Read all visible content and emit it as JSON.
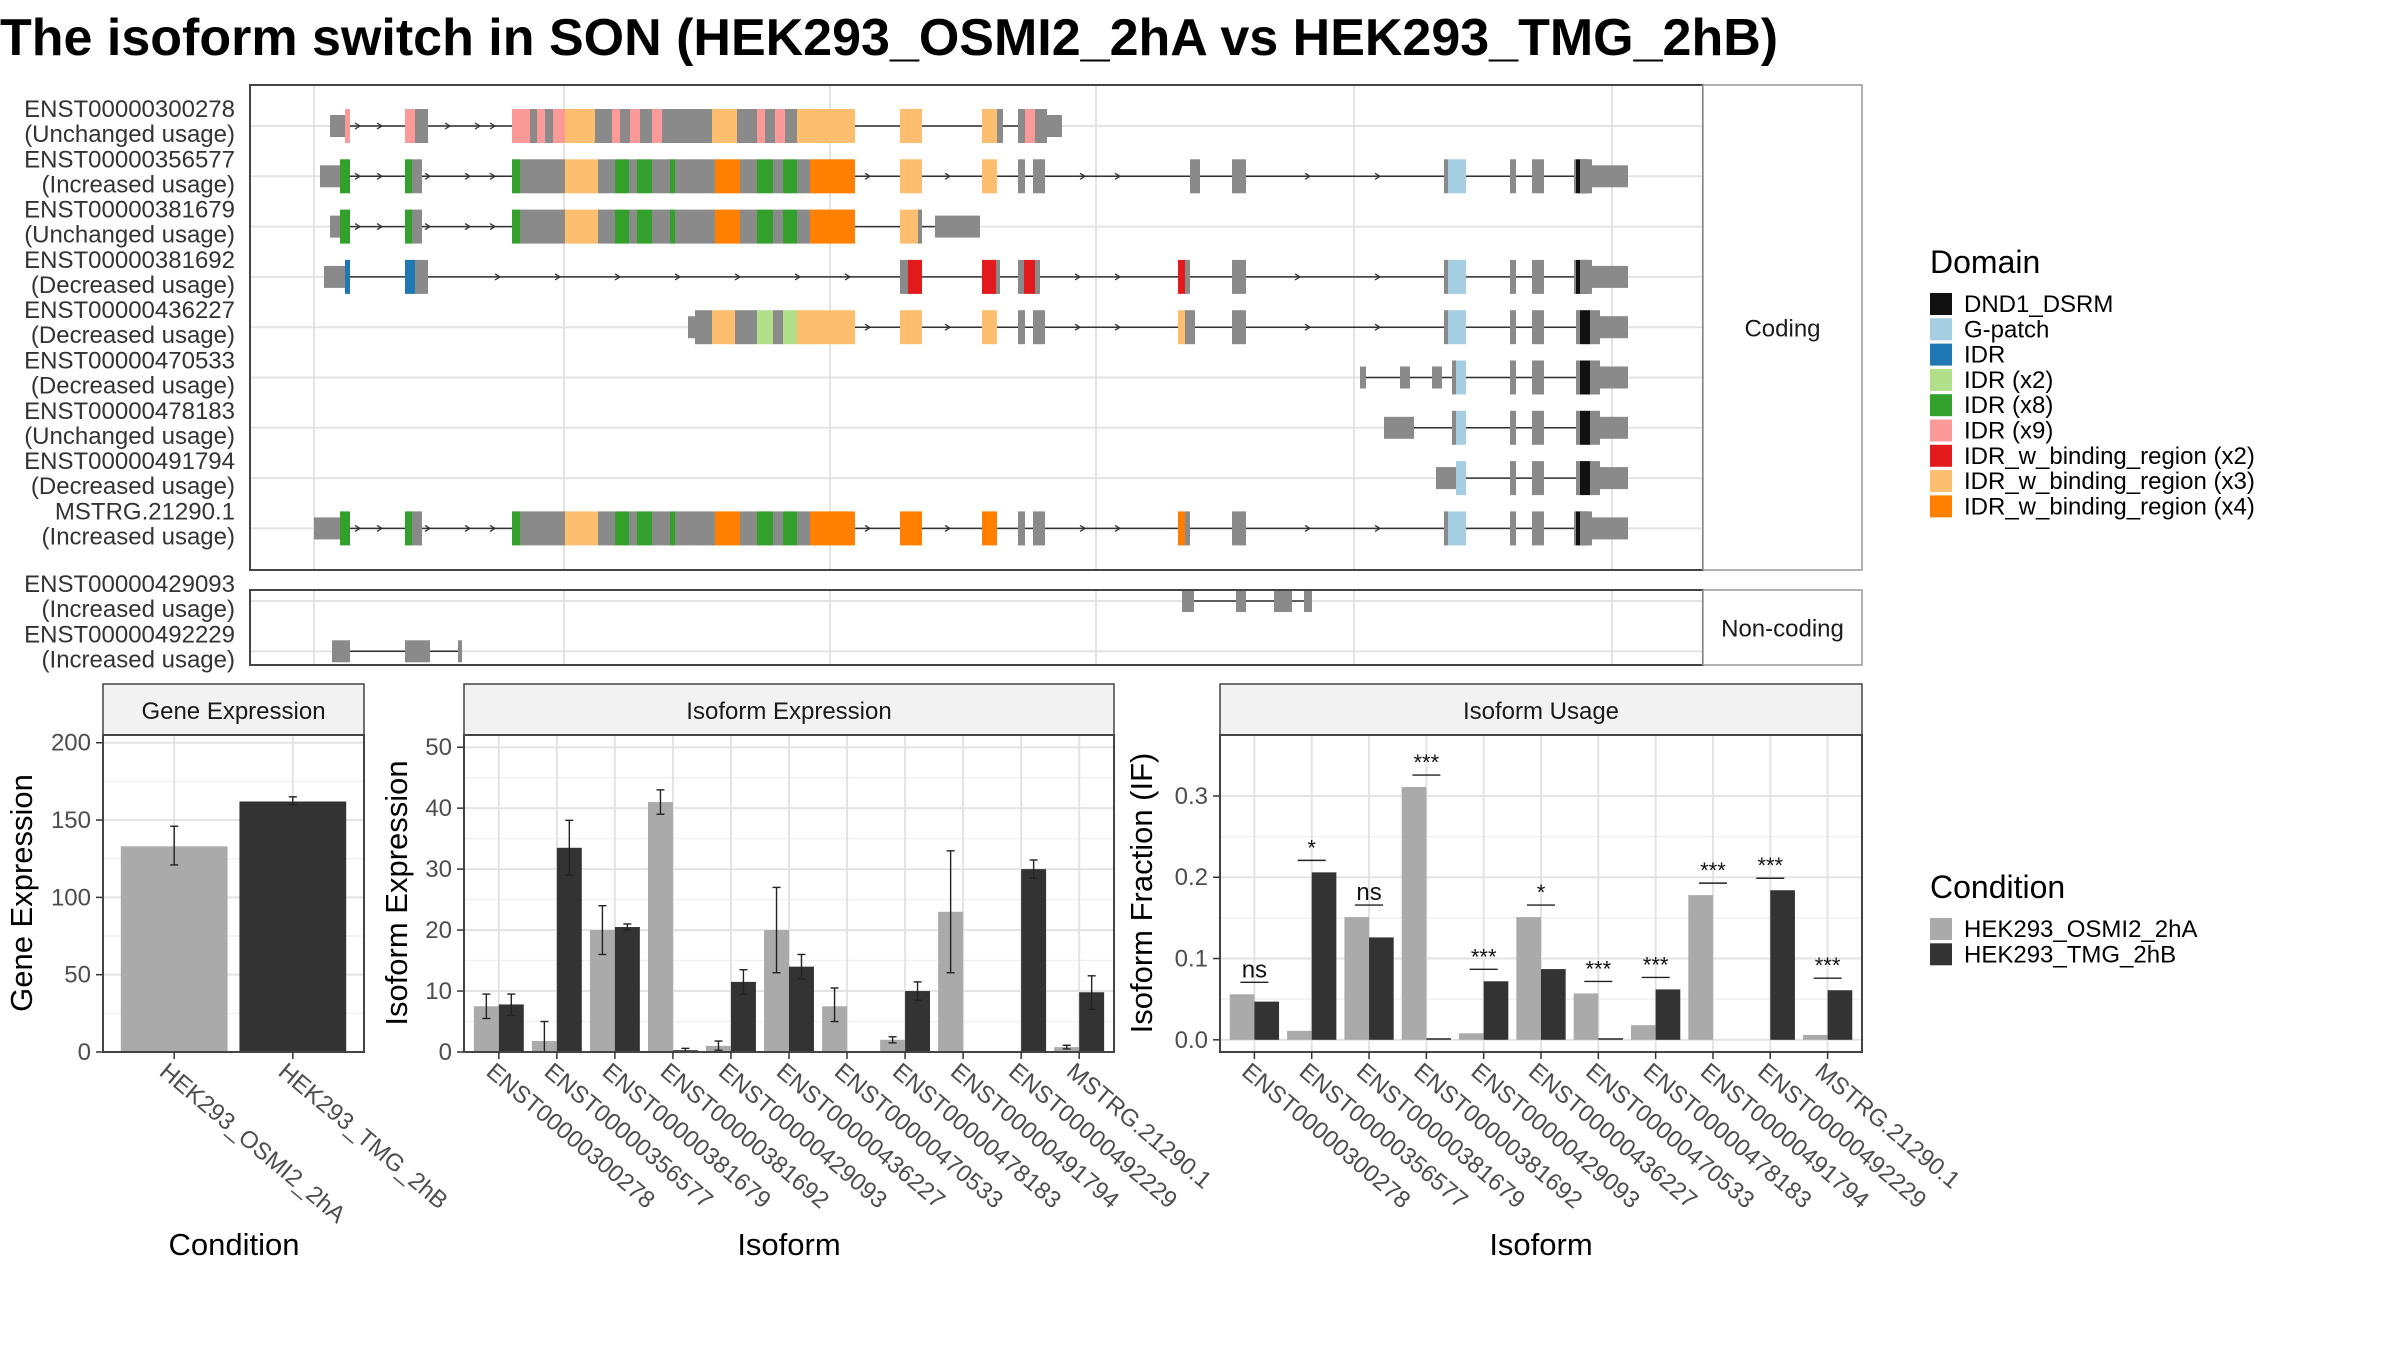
{
  "title": "The isoform switch in SON (HEK293_OSMI2_2hA vs HEK293_TMG_2hB)",
  "chart_data": [
    {
      "type": "gene_structure",
      "panels": [
        {
          "strip": "Coding",
          "isoforms": [
            {
              "id": "ENST00000300278",
              "usage": "(Unchanged usage)"
            },
            {
              "id": "ENST00000356577",
              "usage": "(Increased usage)"
            },
            {
              "id": "ENST00000381679",
              "usage": "(Unchanged usage)"
            },
            {
              "id": "ENST00000381692",
              "usage": "(Decreased usage)"
            },
            {
              "id": "ENST00000436227",
              "usage": "(Decreased usage)"
            },
            {
              "id": "ENST00000470533",
              "usage": "(Decreased usage)"
            },
            {
              "id": "ENST00000478183",
              "usage": "(Unchanged usage)"
            },
            {
              "id": "ENST00000491794",
              "usage": "(Decreased usage)"
            },
            {
              "id": "MSTRG.21290.1",
              "usage": "(Increased usage)"
            }
          ]
        },
        {
          "strip": "Non-coding",
          "isoforms": [
            {
              "id": "ENST00000429093",
              "usage": "(Increased usage)"
            },
            {
              "id": "ENST00000492229",
              "usage": "(Increased usage)"
            }
          ]
        }
      ],
      "legend": {
        "title": "Domain",
        "items": [
          {
            "label": "DND1_DSRM",
            "color": "#111111"
          },
          {
            "label": "G-patch",
            "color": "#a6cee3"
          },
          {
            "label": "IDR",
            "color": "#1f78b4"
          },
          {
            "label": "IDR (x2)",
            "color": "#b2df8a"
          },
          {
            "label": "IDR (x8)",
            "color": "#33a02c"
          },
          {
            "label": "IDR (x9)",
            "color": "#fb9a99"
          },
          {
            "label": "IDR_w_binding_region (x2)",
            "color": "#e31a1c"
          },
          {
            "label": "IDR_w_binding_region (x3)",
            "color": "#fdbf6f"
          },
          {
            "label": "IDR_w_binding_region (x4)",
            "color": "#ff7f00"
          }
        ]
      }
    },
    {
      "type": "bar",
      "strip": "Gene Expression",
      "xlabel": "Condition",
      "ylabel": "Gene Expression",
      "categories": [
        "HEK293_OSMI2_2hA",
        "HEK293_TMG_2hB"
      ],
      "values": [
        133,
        162
      ],
      "errors": [
        [
          121,
          146
        ],
        [
          160,
          165
        ]
      ],
      "ylim": [
        0,
        205
      ],
      "yticks": [
        "0",
        "50",
        "100",
        "150",
        "200"
      ]
    },
    {
      "type": "bar",
      "strip": "Isoform Expression",
      "xlabel": "Isoform",
      "ylabel": "Isoform Expression",
      "categories": [
        "ENST00000300278",
        "ENST00000356577",
        "ENST00000381679",
        "ENST00000381692",
        "ENST00000429093",
        "ENST00000436227",
        "ENST00000470533",
        "ENST00000478183",
        "ENST00000491794",
        "ENST00000492229",
        "MSTRG.21290.1"
      ],
      "series": [
        {
          "name": "HEK293_OSMI2_2hA",
          "values": [
            7.5,
            1.8,
            20,
            41,
            1,
            20,
            7.5,
            2,
            23,
            0,
            0.8
          ],
          "errors": [
            [
              5.5,
              9.5
            ],
            [
              0,
              5
            ],
            [
              16,
              24
            ],
            [
              39,
              43
            ],
            [
              0.3,
              1.8
            ],
            [
              13,
              27
            ],
            [
              5,
              10.5
            ],
            [
              1.5,
              2.5
            ],
            [
              13,
              33
            ],
            [
              0,
              0
            ],
            [
              0.5,
              1.1
            ]
          ]
        },
        {
          "name": "HEK293_TMG_2hB",
          "values": [
            7.8,
            33.5,
            20.5,
            0.3,
            11.5,
            14,
            0,
            10,
            0,
            30,
            9.8
          ],
          "errors": [
            [
              6,
              9.5
            ],
            [
              29,
              38
            ],
            [
              20,
              21
            ],
            [
              0.1,
              0.6
            ],
            [
              9.5,
              13.5
            ],
            [
              12,
              16
            ],
            [
              0,
              0
            ],
            [
              8.5,
              11.5
            ],
            [
              0,
              0
            ],
            [
              28.5,
              31.5
            ],
            [
              7,
              12.5
            ]
          ]
        }
      ],
      "ylim": [
        0,
        52
      ],
      "yticks": [
        "0",
        "10",
        "20",
        "30",
        "40",
        "50"
      ]
    },
    {
      "type": "bar",
      "strip": "Isoform Usage",
      "xlabel": "Isoform",
      "ylabel": "Isoform Fraction (IF)",
      "categories": [
        "ENST00000300278",
        "ENST00000356577",
        "ENST00000381679",
        "ENST00000381692",
        "ENST00000429093",
        "ENST00000436227",
        "ENST00000470533",
        "ENST00000478183",
        "ENST00000491794",
        "ENST00000492229",
        "MSTRG.21290.1"
      ],
      "series": [
        {
          "name": "HEK293_OSMI2_2hA",
          "values": [
            0.056,
            0.011,
            0.151,
            0.311,
            0.008,
            0.151,
            0.057,
            0.018,
            0.178,
            0,
            0.006
          ]
        },
        {
          "name": "HEK293_TMG_2hB",
          "values": [
            0.047,
            0.206,
            0.126,
            0.002,
            0.072,
            0.087,
            0.002,
            0.062,
            0,
            0.184,
            0.061
          ]
        }
      ],
      "significance": [
        "ns",
        "*",
        "ns",
        "***",
        "***",
        "*",
        "***",
        "***",
        "***",
        "***",
        "***"
      ],
      "ylim": [
        -0.015,
        0.375
      ],
      "yticks": [
        "0.0",
        "0.1",
        "0.2",
        "0.3"
      ]
    }
  ],
  "condition_legend": {
    "title": "Condition",
    "items": [
      {
        "label": "HEK293_OSMI2_2hA",
        "color": "#aaaaaa"
      },
      {
        "label": "HEK293_TMG_2hB",
        "color": "#333333"
      }
    ]
  }
}
